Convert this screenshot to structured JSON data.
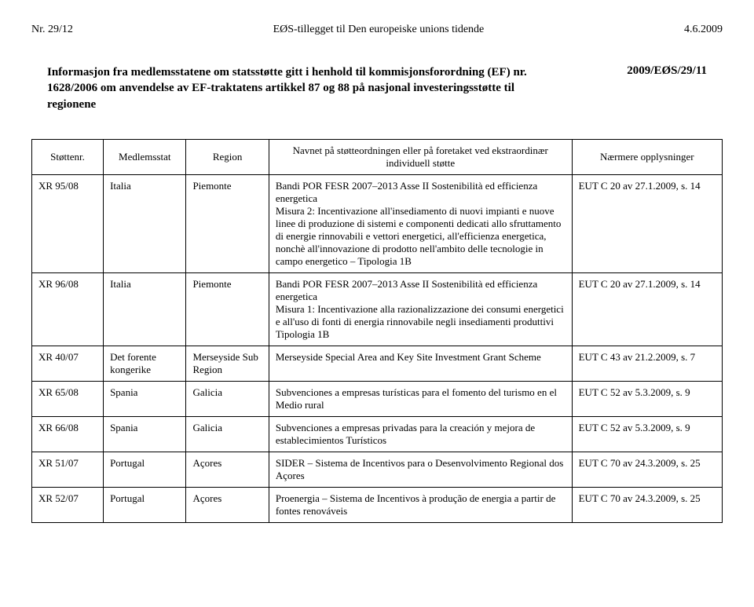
{
  "header": {
    "left": "Nr. 29/12",
    "center": "EØS-tillegget til Den europeiske unions tidende",
    "right": "4.6.2009"
  },
  "intro": {
    "text": "Informasjon fra medlemsstatene om statsstøtte gitt i henhold til kommisjonsforordning (EF) nr. 1628/2006 om anvendelse av EF-traktatens artikkel 87 og 88 på nasjonal investeringsstøtte til regionene",
    "ref": "2009/EØS/29/11"
  },
  "table": {
    "headers": {
      "stottenr": "Støttenr.",
      "medlemsstat": "Medlemsstat",
      "region": "Region",
      "navnet": "Navnet på støtteordningen eller på foretaket ved ekstraordinær individuell støtte",
      "opplysninger": "Nærmere opplysninger"
    },
    "rows": [
      {
        "stottenr": "XR 95/08",
        "medlemsstat": "Italia",
        "region": "Piemonte",
        "navnet": "Bandi POR FESR 2007–2013 Asse II Sostenibilità ed efficienza energetica\nMisura 2: Incentivazione all'insediamento di nuovi impianti e nuove linee di produzione di sistemi e componenti dedicati allo sfruttamento di energie rinnovabili e vettori energetici, all'efficienza energetica, nonchè all'innovazione di prodotto nell'ambito delle tecnologie in campo energetico – Tipologia 1B",
        "opplysninger": "EUT C 20 av 27.1.2009, s. 14"
      },
      {
        "stottenr": "XR 96/08",
        "medlemsstat": "Italia",
        "region": "Piemonte",
        "navnet": "Bandi POR FESR 2007–2013 Asse II Sostenibilità ed efficienza energetica\nMisura 1: Incentivazione alla razionalizzazione dei consumi energetici e all'uso di fonti di energia rinnovabile negli insediamenti produttivi Tipologia 1B",
        "opplysninger": "EUT C 20 av 27.1.2009, s. 14"
      },
      {
        "stottenr": "XR 40/07",
        "medlemsstat": "Det forente kongerike",
        "region": "Merseyside Sub Region",
        "navnet": "Merseyside Special Area and Key Site Investment Grant Scheme",
        "opplysninger": "EUT C 43 av 21.2.2009, s. 7"
      },
      {
        "stottenr": "XR 65/08",
        "medlemsstat": "Spania",
        "region": "Galicia",
        "navnet": "Subvenciones a empresas turísticas para el fomento del turismo en el Medio rural",
        "opplysninger": "EUT C 52 av 5.3.2009, s. 9"
      },
      {
        "stottenr": "XR 66/08",
        "medlemsstat": "Spania",
        "region": "Galicia",
        "navnet": "Subvenciones a empresas privadas para la creación y mejora de establecimientos Turísticos",
        "opplysninger": "EUT C 52 av 5.3.2009, s. 9"
      },
      {
        "stottenr": "XR 51/07",
        "medlemsstat": "Portugal",
        "region": "Açores",
        "navnet": "SIDER – Sistema de Incentivos para o Desenvolvimento Regional dos Açores",
        "opplysninger": "EUT C 70 av 24.3.2009, s. 25"
      },
      {
        "stottenr": "XR 52/07",
        "medlemsstat": "Portugal",
        "region": "Açores",
        "navnet": "Proenergia – Sistema de Incentivos à produção de energia a partir de fontes renováveis",
        "opplysninger": "EUT C 70 av 24.3.2009, s. 25"
      }
    ]
  }
}
